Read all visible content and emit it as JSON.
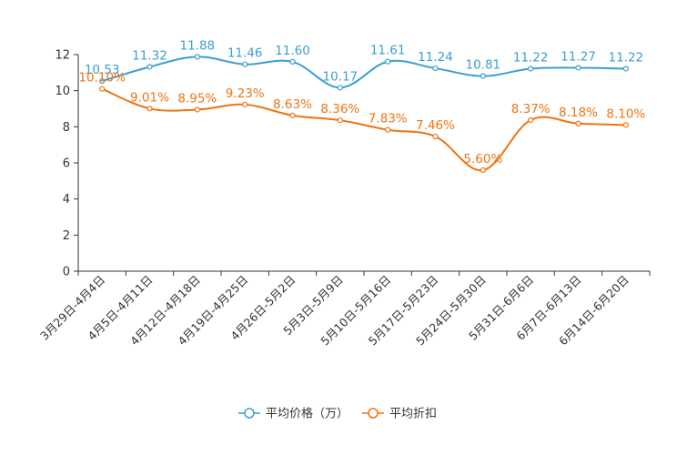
{
  "chart_data": {
    "type": "line",
    "title": "",
    "xlabel": "",
    "ylabel": "",
    "ylim": [
      0,
      12
    ],
    "y_ticks": [
      0,
      2,
      4,
      6,
      8,
      10,
      12
    ],
    "categories": [
      "3月29日-4月4日",
      "4月5日-4月11日",
      "4月12日-4月18日",
      "4月19日-4月25日",
      "4月26日-5月2日",
      "5月3日-5月9日",
      "5月10日-5月16日",
      "5月17日-5月23日",
      "5月24日-5月30日",
      "5月31日-6月6日",
      "6月7日-6月13日",
      "6月14日-6月20日"
    ],
    "series": [
      {
        "name": "平均价格（万）",
        "color": "#3a9fcf",
        "values": [
          10.53,
          11.32,
          11.88,
          11.46,
          11.6,
          10.17,
          11.61,
          11.24,
          10.81,
          11.22,
          11.27,
          11.22
        ],
        "labels": [
          "10.53",
          "11.32",
          "11.88",
          "11.46",
          "11.60",
          "10.17",
          "11.61",
          "11.24",
          "10.81",
          "11.22",
          "11.27",
          "11.22"
        ]
      },
      {
        "name": "平均折扣",
        "color": "#f0730f",
        "values": [
          10.1,
          9.01,
          8.95,
          9.23,
          8.63,
          8.36,
          7.83,
          7.46,
          5.6,
          8.37,
          8.18,
          8.1
        ],
        "labels": [
          "10.10%",
          "9.01%",
          "8.95%",
          "9.23%",
          "8.63%",
          "8.36%",
          "7.83%",
          "7.46%",
          "5.60%",
          "8.37%",
          "8.18%",
          "8.10%"
        ]
      }
    ],
    "legend_position": "bottom-center",
    "grid": false
  }
}
